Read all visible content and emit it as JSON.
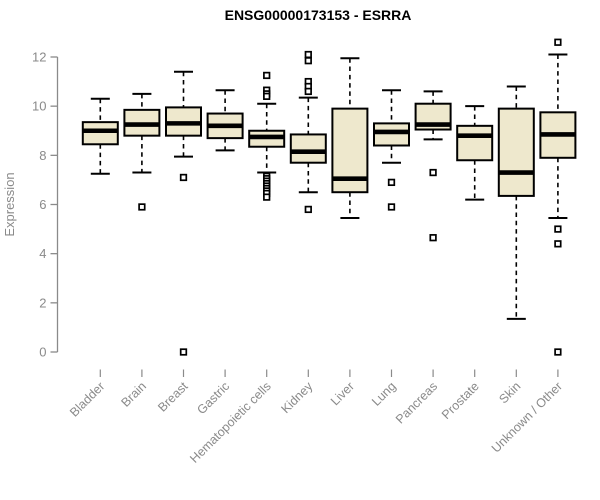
{
  "figure": {
    "title": "ENSG00000173153 - ESRRA",
    "y_axis_label": "Expression"
  },
  "chart_data": {
    "type": "box",
    "title": "ENSG00000173153 - ESRRA",
    "xlabel": "",
    "ylabel": "Expression",
    "ylim": [
      0,
      12
    ],
    "yticks": [
      0,
      2,
      4,
      6,
      8,
      10,
      12
    ],
    "grid": false,
    "legend_position": "none",
    "categories": [
      "Bladder",
      "Brain",
      "Breast",
      "Gastric",
      "Hematopoietic cells",
      "Kidney",
      "Liver",
      "Lung",
      "Pancreas",
      "Prostate",
      "Skin",
      "Unknown / Other"
    ],
    "series": [
      {
        "category": "Bladder",
        "whisker_low": 7.25,
        "q1": 8.45,
        "median": 9.0,
        "q3": 9.35,
        "whisker_high": 10.3,
        "outliers": []
      },
      {
        "category": "Brain",
        "whisker_low": 7.3,
        "q1": 8.8,
        "median": 9.25,
        "q3": 9.85,
        "whisker_high": 10.5,
        "outliers": [
          5.9
        ]
      },
      {
        "category": "Breast",
        "whisker_low": 7.95,
        "q1": 8.8,
        "median": 9.3,
        "q3": 9.95,
        "whisker_high": 11.4,
        "outliers": [
          7.1,
          0.0
        ]
      },
      {
        "category": "Gastric",
        "whisker_low": 8.2,
        "q1": 8.7,
        "median": 9.2,
        "q3": 9.7,
        "whisker_high": 10.65,
        "outliers": []
      },
      {
        "category": "Hematopoietic cells",
        "whisker_low": 7.3,
        "q1": 8.35,
        "median": 8.75,
        "q3": 9.0,
        "whisker_high": 10.1,
        "outliers": [
          11.25,
          10.65,
          10.5,
          10.4,
          7.15,
          7.05,
          6.95,
          6.85,
          6.75,
          6.65,
          6.55,
          6.45,
          6.3
        ]
      },
      {
        "category": "Kidney",
        "whisker_low": 6.5,
        "q1": 7.7,
        "median": 8.15,
        "q3": 8.85,
        "whisker_high": 10.35,
        "outliers": [
          12.1,
          11.85,
          11.0,
          10.8,
          10.6,
          5.8
        ]
      },
      {
        "category": "Liver",
        "whisker_low": 5.45,
        "q1": 6.5,
        "median": 7.05,
        "q3": 9.9,
        "whisker_high": 11.95,
        "outliers": []
      },
      {
        "category": "Lung",
        "whisker_low": 7.7,
        "q1": 8.4,
        "median": 8.95,
        "q3": 9.3,
        "whisker_high": 10.65,
        "outliers": [
          6.9,
          5.9
        ]
      },
      {
        "category": "Pancreas",
        "whisker_low": 8.65,
        "q1": 9.05,
        "median": 9.25,
        "q3": 10.1,
        "whisker_high": 10.6,
        "outliers": [
          7.3,
          4.65
        ]
      },
      {
        "category": "Prostate",
        "whisker_low": 6.2,
        "q1": 7.8,
        "median": 8.8,
        "q3": 9.2,
        "whisker_high": 10.0,
        "outliers": []
      },
      {
        "category": "Skin",
        "whisker_low": 1.35,
        "q1": 6.35,
        "median": 7.3,
        "q3": 9.9,
        "whisker_high": 10.8,
        "outliers": []
      },
      {
        "category": "Unknown / Other",
        "whisker_low": 5.45,
        "q1": 7.9,
        "median": 8.85,
        "q3": 9.75,
        "whisker_high": 12.1,
        "outliers": [
          12.6,
          5.0,
          4.4,
          0.0
        ]
      }
    ],
    "style": {
      "background": "#ffffff",
      "box_fill": "#EEE8CD",
      "box_border": "#000000",
      "median_color": "#000000",
      "whisker_color": "#000000",
      "whisker_line": "dashed",
      "outlier_shape": "open-square",
      "outlier_fill": "#ffffff",
      "outlier_border": "#000000",
      "axis_color": "#8a8a8a",
      "tick_label_color": "#8a8a8a",
      "title_color": "#000000"
    }
  }
}
